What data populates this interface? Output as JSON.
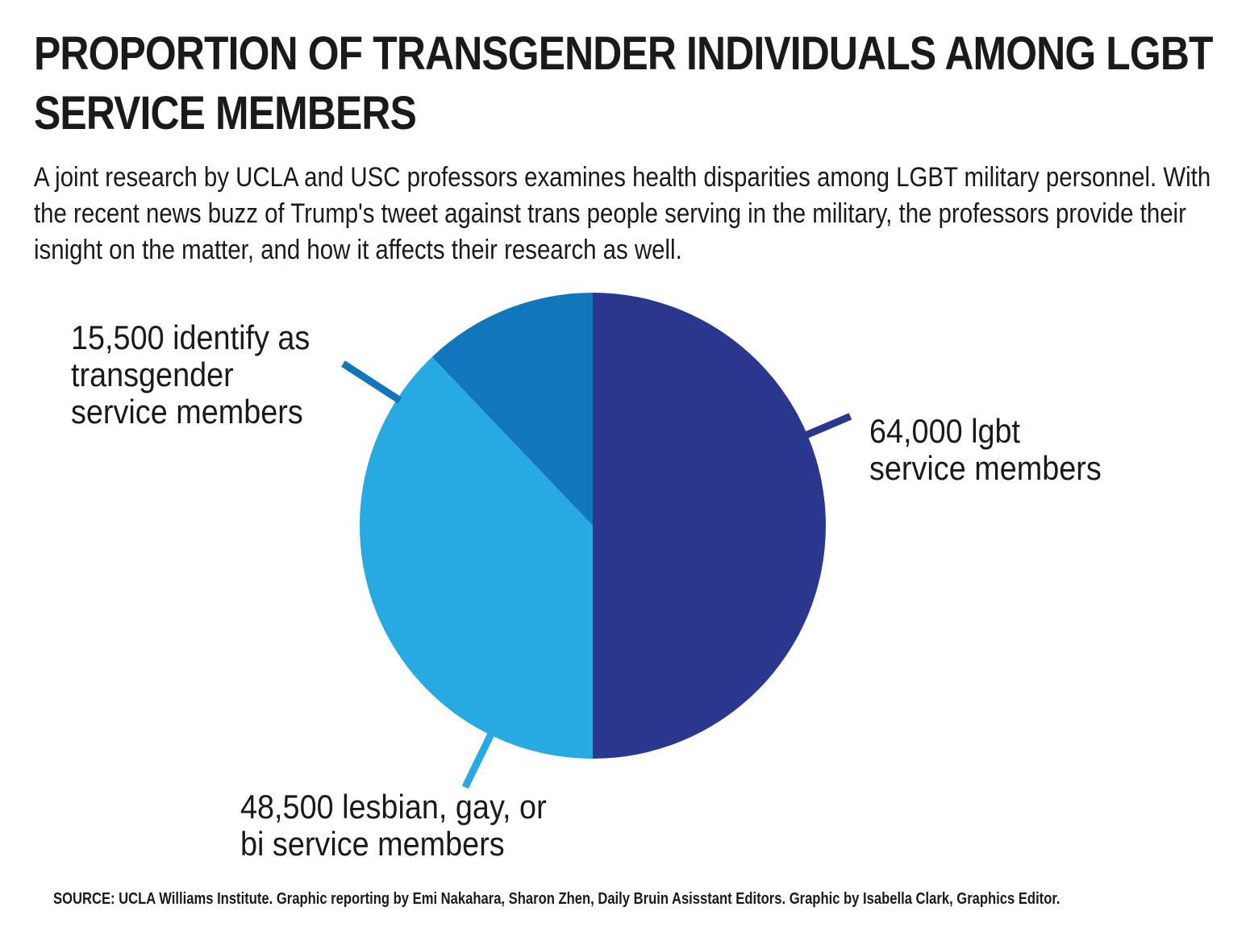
{
  "title": "PROPORTION OF TRANSGENDER INDIVIDUALS AMONG LGBT SERVICE MEMBERS",
  "subtitle": "A joint research by UCLA and USC professors examines health disparities among LGBT military personnel. With the recent news buzz of Trump's tweet against trans people serving in the military, the professors provide their isnight on the matter, and how it affects their research as well.",
  "source": "SOURCE:  UCLA Williams Institute. Graphic reporting by Emi Nakahara, Sharon Zhen, Daily Bruin Asisstant Editors. Graphic by Isabella Clark, Graphics Editor.",
  "chart_data": {
    "type": "pie",
    "title": "PROPORTION OF TRANSGENDER INDIVIDUALS AMONG LGBT SERVICE MEMBERS",
    "slices": [
      {
        "name": "lgbt service members",
        "value": 64000,
        "label_lines": [
          "64,000 lgbt",
          "service members"
        ],
        "color": "#2a378f"
      },
      {
        "name": "lesbian, gay, or bi service members",
        "value": 48500,
        "label_lines": [
          "48,500  lesbian, gay, or",
          "bi service members"
        ],
        "color": "#27a9e1"
      },
      {
        "name": "transgender service members",
        "value": 15500,
        "label_lines": [
          "15,500 identify as",
          "transgender",
          "service members"
        ],
        "color": "#1276bd"
      }
    ],
    "note": "Slices drawn as shown in the graphic: the 64,000 LGBT total occupies the right half; the remaining half is split between lesbian/gay/bi (48,500) and transgender (15,500)."
  }
}
